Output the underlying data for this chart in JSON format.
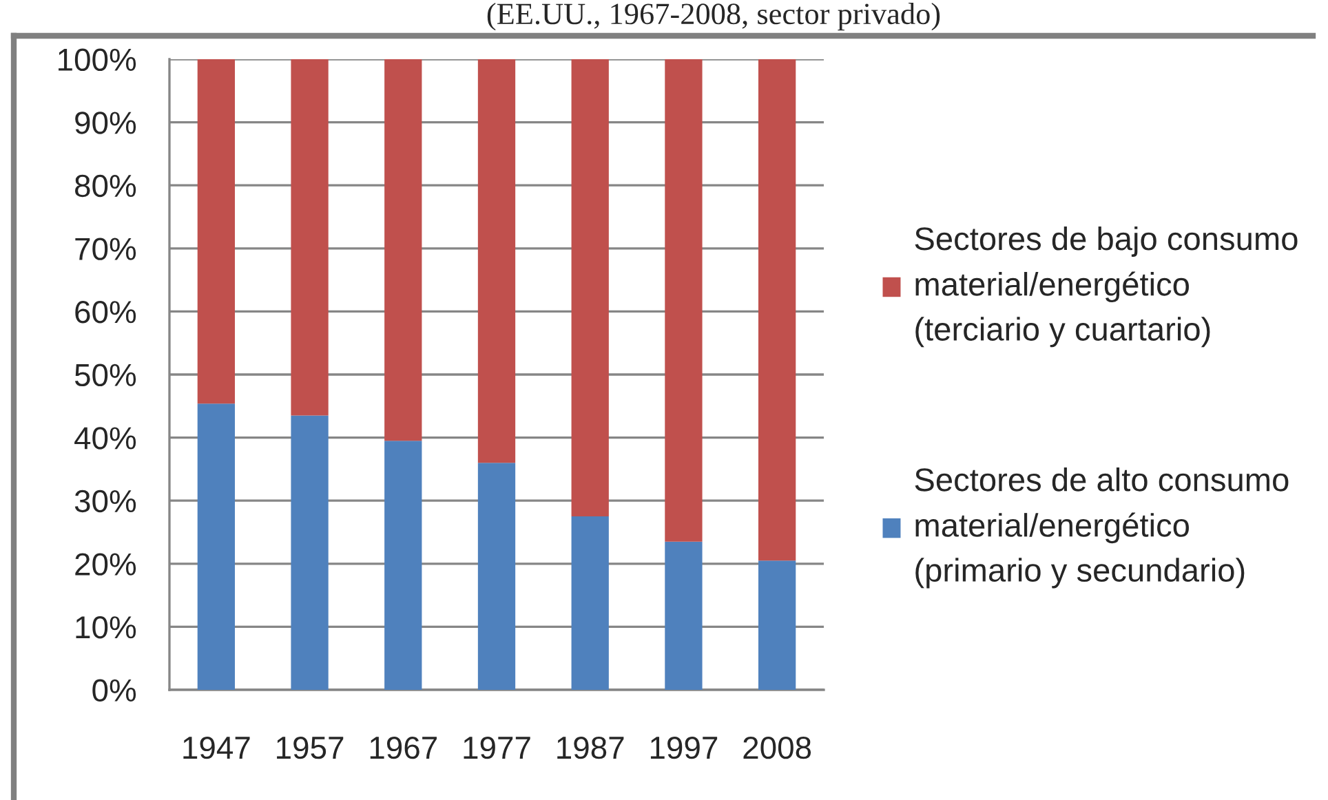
{
  "chart_data": {
    "type": "bar",
    "stacked": true,
    "title": "(EE.UU., 1967-2008, sector privado)",
    "categories": [
      "1947",
      "1957",
      "1967",
      "1977",
      "1987",
      "1997",
      "2008"
    ],
    "series": [
      {
        "name": "Sectores de alto consumo\nmaterial/energético\n(primario y secundario)",
        "color": "#4f81bd",
        "values": [
          45.4,
          43.5,
          39.5,
          36.0,
          27.5,
          23.5,
          20.5
        ]
      },
      {
        "name": "Sectores de bajo consumo\nmaterial/energético\n(terciario y cuartario)",
        "color": "#c0504d",
        "values": [
          54.6,
          56.5,
          60.5,
          64.0,
          72.5,
          76.5,
          79.5
        ]
      }
    ],
    "ylim": [
      0,
      100
    ],
    "yticks": [
      {
        "value": 0,
        "label": "0%"
      },
      {
        "value": 10,
        "label": "10%"
      },
      {
        "value": 20,
        "label": "20%"
      },
      {
        "value": 30,
        "label": "30%"
      },
      {
        "value": 40,
        "label": "40%"
      },
      {
        "value": 50,
        "label": "50%"
      },
      {
        "value": 60,
        "label": "60%"
      },
      {
        "value": 70,
        "label": "70%"
      },
      {
        "value": 80,
        "label": "80%"
      },
      {
        "value": 90,
        "label": "90%"
      },
      {
        "value": 100,
        "label": "100%"
      }
    ],
    "grid": "y",
    "legend": "right"
  }
}
